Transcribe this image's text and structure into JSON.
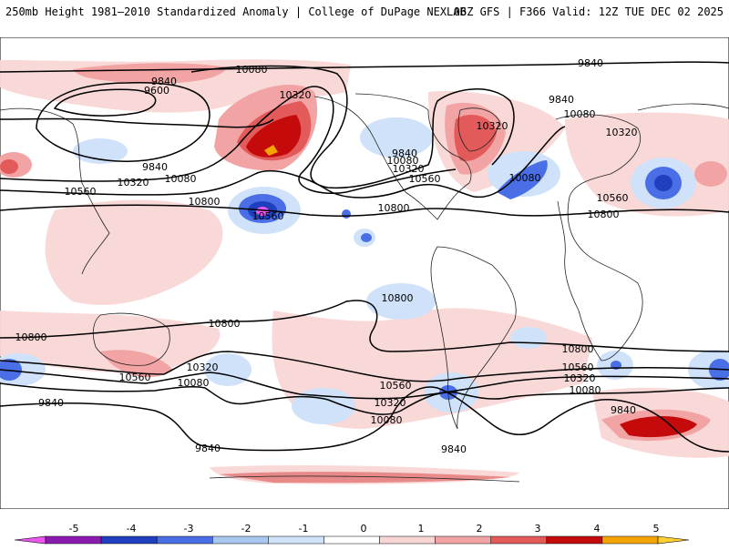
{
  "header": {
    "left": "250mb Height 1981–2010 Standardized Anomaly | College of DuPage NEXLAB",
    "right": "06Z GFS | F366 Valid: 12Z TUE DEC 02 2025"
  },
  "map": {
    "contour_labels": [
      "9840",
      "9600",
      "10080",
      "10320",
      "10560",
      "10800"
    ]
  },
  "colorbar": {
    "ticks": [
      "-5",
      "-4",
      "-3",
      "-2",
      "-1",
      "0",
      "1",
      "2",
      "3",
      "4",
      "5"
    ],
    "colors": [
      "#ee55ee",
      "#8a1ab0",
      "#1f3fbf",
      "#4a6ee6",
      "#a8c8f0",
      "#cfe2fa",
      "#ffffff",
      "#f9d6d6",
      "#f2a4a4",
      "#e35a5a",
      "#c40a0a",
      "#f4a400",
      "#ffd02e"
    ]
  }
}
